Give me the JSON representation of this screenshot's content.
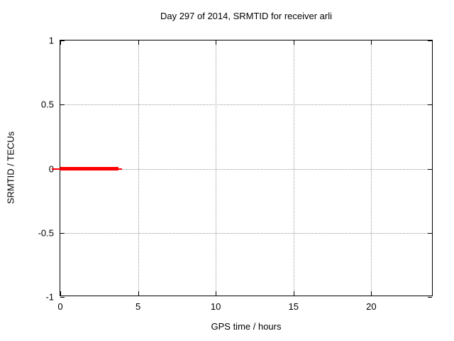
{
  "chart_data": {
    "type": "line",
    "title": "Day 297 of 2014, SRMTID for receiver arli",
    "xlabel": "GPS time / hours",
    "ylabel": "SRMTID / TECUs",
    "xlim": [
      0,
      24
    ],
    "ylim": [
      -1,
      1
    ],
    "xticks": [
      0,
      5,
      10,
      15,
      20
    ],
    "yticks": [
      1,
      0.5,
      0,
      -0.5,
      -1
    ],
    "xtick_labels": [
      "0",
      "5",
      "10",
      "15",
      "20"
    ],
    "ytick_labels": [
      "1",
      "0.5",
      "0",
      "-0.5",
      "-1"
    ],
    "grid": true,
    "grid_style": "dotted",
    "legend": "none",
    "series": [
      {
        "name": "SRMTID",
        "color": "#ff0000",
        "y": 0,
        "x_start": 0,
        "x_end": 3.9,
        "segments": [
          {
            "x1": -0.55,
            "x2": 3.97,
            "y": 0,
            "px_thickness": 2
          },
          {
            "x1": 0.0,
            "x2": 3.74,
            "y": 0,
            "px_thickness": 5
          }
        ]
      }
    ],
    "colors": {
      "line": "#ff0000",
      "grid": "#9a9a9a",
      "axis": "#000000",
      "background": "#ffffff",
      "text": "#000000"
    }
  }
}
